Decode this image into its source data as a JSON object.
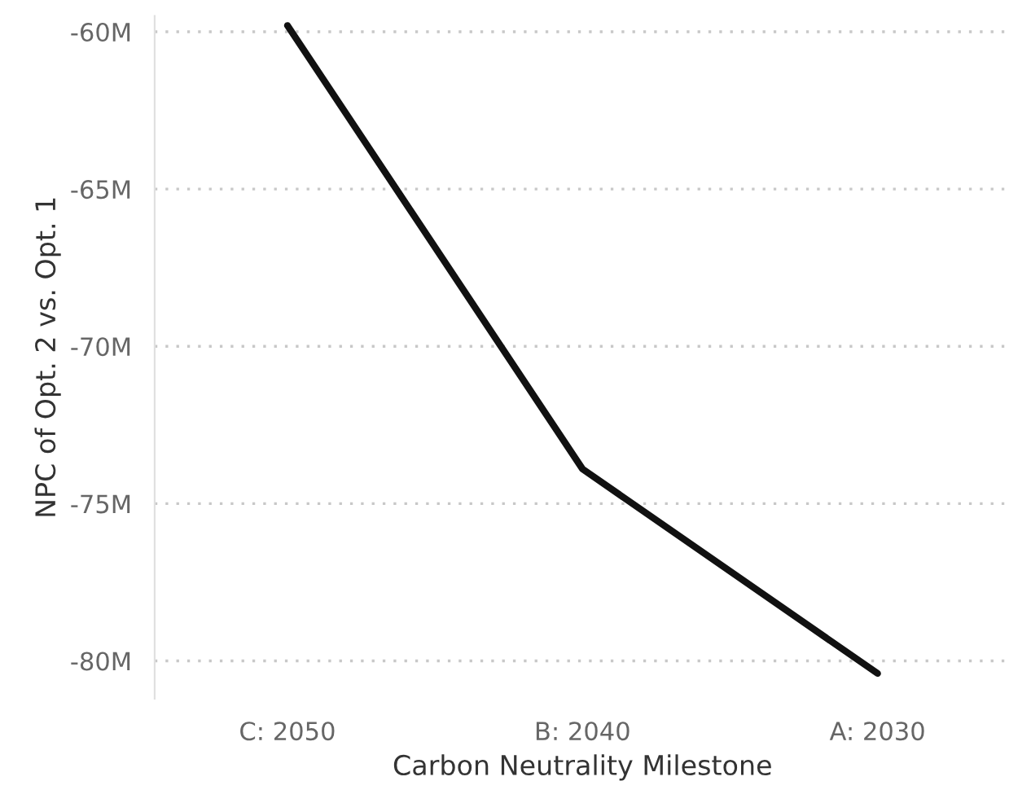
{
  "chart_data": {
    "type": "line",
    "xlabel": "Carbon Neutrality Milestone",
    "ylabel": "NPC of Opt. 2 vs. Opt. 1",
    "categories": [
      "C: 2050",
      "B: 2040",
      "A: 2030"
    ],
    "series": [
      {
        "color": "#111111",
        "values": [
          -59.8,
          -73.9,
          -80.4
        ]
      }
    ],
    "ylim": [
      -81.2,
      -59.5
    ],
    "yticks": [
      {
        "value": -80,
        "label": "-80M"
      },
      {
        "value": -75,
        "label": "-75M"
      },
      {
        "value": -70,
        "label": "-70M"
      },
      {
        "value": -65,
        "label": "-65M"
      },
      {
        "value": -60,
        "label": "-60M"
      }
    ],
    "grid": "y",
    "line_style": "solid",
    "marker": "none"
  }
}
